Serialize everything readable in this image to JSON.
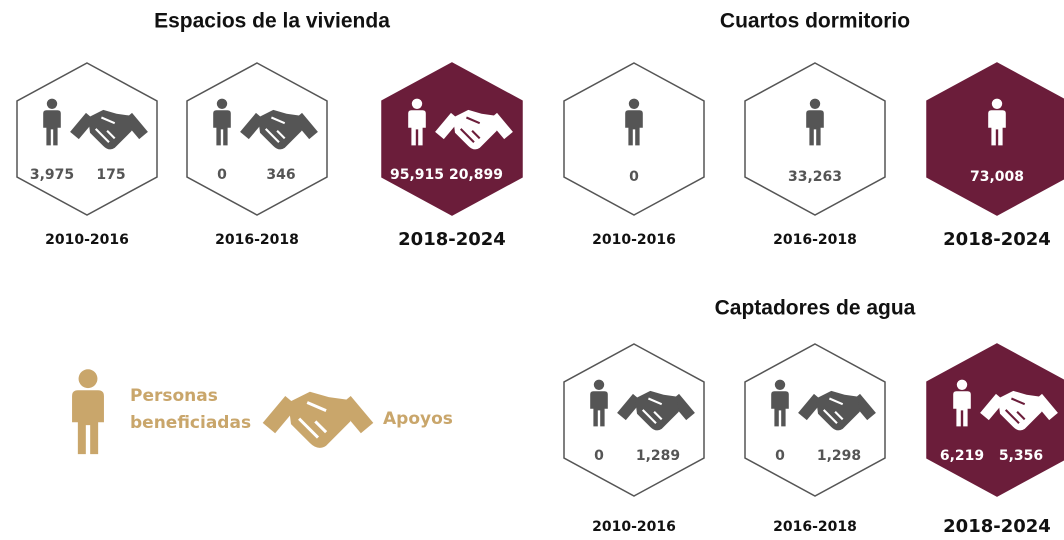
{
  "sections": [
    {
      "title": "Espacios de la vivienda",
      "hexes": [
        {
          "period": "2010-2016",
          "personas": "3,975",
          "apoyos": "175"
        },
        {
          "period": "2016-2018",
          "personas": "0",
          "apoyos": "346"
        },
        {
          "period": "2018-2024",
          "personas": "95,915",
          "apoyos": "20,899"
        }
      ]
    },
    {
      "title": "Cuartos dormitorio",
      "hexes": [
        {
          "period": "2010-2016",
          "personas": "0"
        },
        {
          "period": "2016-2018",
          "personas": "33,263"
        },
        {
          "period": "2018-2024",
          "personas": "73,008"
        }
      ]
    },
    {
      "title": "Captadores de agua",
      "hexes": [
        {
          "period": "2010-2016",
          "personas": "0",
          "apoyos": "1,289"
        },
        {
          "period": "2016-2018",
          "personas": "0",
          "apoyos": "1,298"
        },
        {
          "period": "2018-2024",
          "personas": "6,219",
          "apoyos": "5,356"
        }
      ]
    }
  ],
  "legend": {
    "personas": "Personas beneficiadas",
    "apoyos": "Apoyos"
  }
}
